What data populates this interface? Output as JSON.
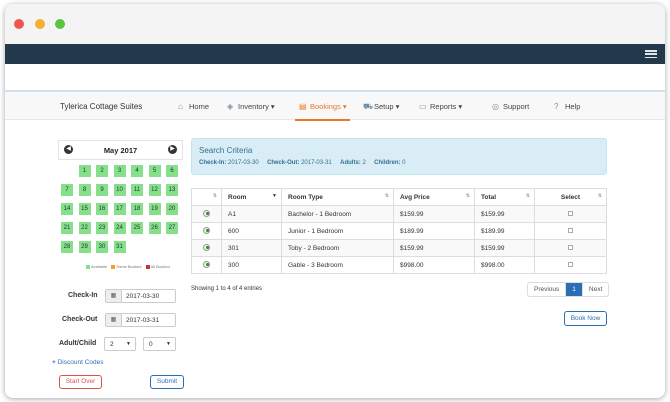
{
  "app": {
    "brand": "Tylerica Cottage Suites"
  },
  "nav": [
    {
      "label": "Home",
      "icon": "home-icon",
      "glyph": "⌂"
    },
    {
      "label": "Inventory ▾",
      "icon": "cube-icon",
      "glyph": "◈"
    },
    {
      "label": "Bookings ▾",
      "icon": "calendar-icon",
      "glyph": "▤"
    },
    {
      "label": "Setup ▾",
      "icon": "truck-icon",
      "glyph": "⛟"
    },
    {
      "label": "Reports ▾",
      "icon": "folder-icon",
      "glyph": "▭"
    },
    {
      "label": "Support",
      "icon": "globe-icon",
      "glyph": "◎"
    },
    {
      "label": "Help",
      "icon": "question-icon",
      "glyph": "?"
    }
  ],
  "calendar": {
    "month": "May 2017",
    "days": [
      "1",
      "2",
      "3",
      "4",
      "5",
      "6",
      "7",
      "8",
      "9",
      "10",
      "11",
      "12",
      "13",
      "14",
      "15",
      "16",
      "17",
      "18",
      "19",
      "20",
      "21",
      "22",
      "23",
      "24",
      "25",
      "26",
      "27",
      "28",
      "29",
      "30",
      "31"
    ],
    "legend": {
      "available": "Available",
      "some_booked": "Some Booked",
      "all_booked": "All Booked"
    }
  },
  "form": {
    "checkin_label": "Check-In",
    "checkin_value": "2017-03-30",
    "checkout_label": "Check-Out",
    "checkout_value": "2017-03-31",
    "adultchild_label": "Adult/Child",
    "adults": "2",
    "children": "0",
    "discount": "Discount Codes",
    "start_over": "Start Over",
    "submit": "Submit"
  },
  "criteria": {
    "title": "Search Criteria",
    "checkin_label": "Check-In:",
    "checkin": "2017-03-30",
    "checkout_label": "Check-Out:",
    "checkout": "2017-03-31",
    "adults_label": "Adults:",
    "adults": "2",
    "children_label": "Children:",
    "children": "0"
  },
  "table": {
    "headers": [
      "",
      "Room",
      "Room Type",
      "Avg Price",
      "Total",
      "Select"
    ],
    "rows": [
      {
        "room": "A1",
        "type": "Bachelor - 1 Bedroom",
        "avg": "$159.99",
        "total": "$159.99"
      },
      {
        "room": "600",
        "type": "Junior - 1 Bedroom",
        "avg": "$189.99",
        "total": "$189.99"
      },
      {
        "room": "301",
        "type": "Toby - 2 Bedroom",
        "avg": "$159.99",
        "total": "$159.99"
      },
      {
        "room": "300",
        "type": "Gable - 3 Bedroom",
        "avg": "$998.00",
        "total": "$998.00"
      }
    ],
    "showing": "Showing 1 to 4 of 4 entries",
    "pager": {
      "prev": "Previous",
      "page": "1",
      "next": "Next"
    },
    "book_now": "Book Now"
  },
  "colors": {
    "available": "#86e08a",
    "some_booked": "#f0a030",
    "all_booked": "#c0392b",
    "accent": "#e8772e",
    "dark_bar": "#243a4c"
  }
}
